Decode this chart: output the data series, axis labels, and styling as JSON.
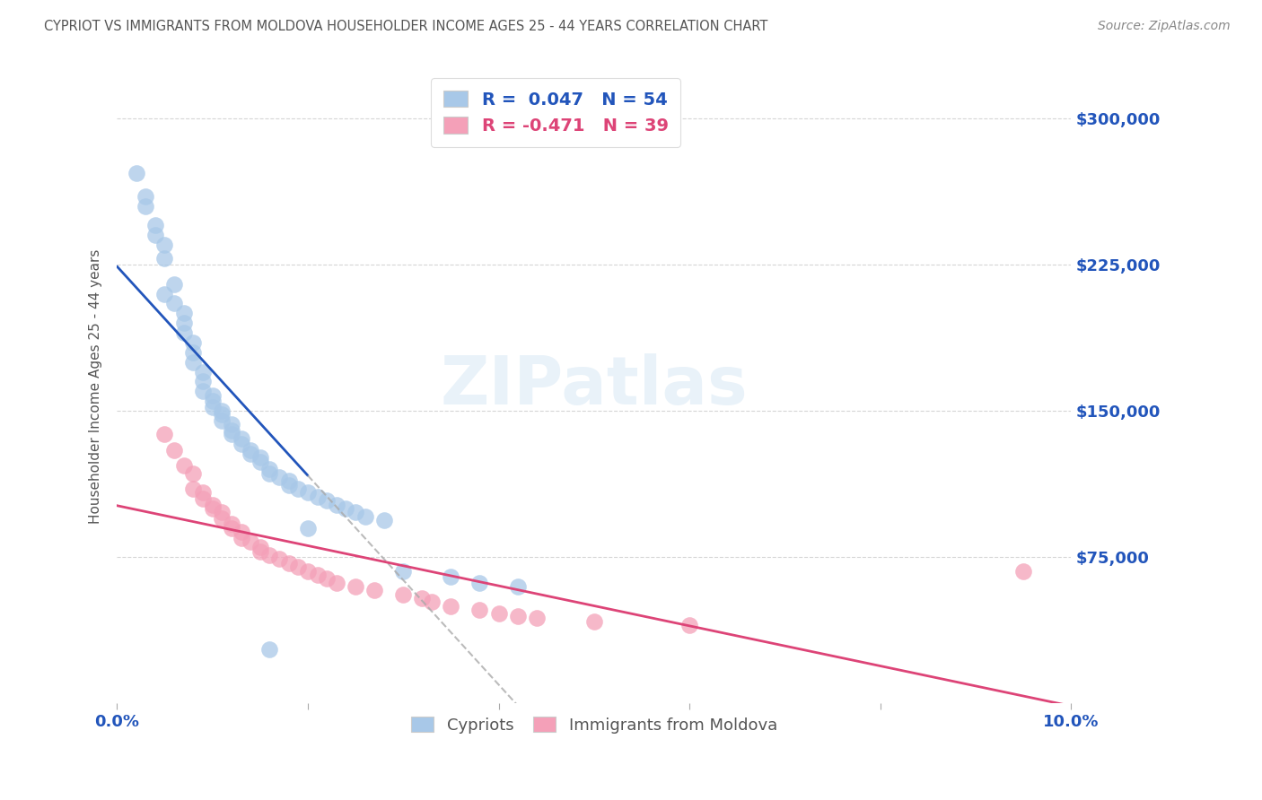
{
  "title": "CYPRIOT VS IMMIGRANTS FROM MOLDOVA HOUSEHOLDER INCOME AGES 25 - 44 YEARS CORRELATION CHART",
  "source": "Source: ZipAtlas.com",
  "ylabel": "Householder Income Ages 25 - 44 years",
  "xlim": [
    0.0,
    0.1
  ],
  "ylim": [
    0,
    325000
  ],
  "yticks": [
    75000,
    150000,
    225000,
    300000
  ],
  "ytick_labels": [
    "$75,000",
    "$150,000",
    "$225,000",
    "$300,000"
  ],
  "xticks": [
    0.0,
    0.02,
    0.04,
    0.06,
    0.08,
    0.1
  ],
  "xtick_labels": [
    "0.0%",
    "",
    "",
    "",
    "",
    "10.0%"
  ],
  "legend_labels": [
    "Cypriots",
    "Immigrants from Moldova"
  ],
  "cypriot_color": "#a8c8e8",
  "moldova_color": "#f4a0b8",
  "cypriot_line_color": "#2255bb",
  "moldova_line_color": "#dd4477",
  "cypriot_R": 0.047,
  "cypriot_N": 54,
  "moldova_R": -0.471,
  "moldova_N": 39,
  "background_color": "#ffffff",
  "grid_color": "#cccccc",
  "title_color": "#555555",
  "axis_label_color": "#555555",
  "tick_label_color": "#2255bb",
  "source_color": "#888888",
  "cypriot_x": [
    0.002,
    0.003,
    0.003,
    0.004,
    0.004,
    0.005,
    0.005,
    0.005,
    0.006,
    0.006,
    0.007,
    0.007,
    0.007,
    0.008,
    0.008,
    0.008,
    0.009,
    0.009,
    0.009,
    0.01,
    0.01,
    0.01,
    0.011,
    0.011,
    0.011,
    0.012,
    0.012,
    0.012,
    0.013,
    0.013,
    0.014,
    0.014,
    0.015,
    0.015,
    0.016,
    0.016,
    0.017,
    0.018,
    0.018,
    0.019,
    0.02,
    0.021,
    0.022,
    0.023,
    0.024,
    0.025,
    0.026,
    0.028,
    0.03,
    0.035,
    0.038,
    0.042,
    0.02,
    0.016
  ],
  "cypriot_y": [
    272000,
    260000,
    255000,
    245000,
    240000,
    235000,
    228000,
    210000,
    215000,
    205000,
    200000,
    195000,
    190000,
    185000,
    180000,
    175000,
    170000,
    165000,
    160000,
    158000,
    155000,
    152000,
    150000,
    148000,
    145000,
    143000,
    140000,
    138000,
    136000,
    133000,
    130000,
    128000,
    126000,
    124000,
    120000,
    118000,
    116000,
    114000,
    112000,
    110000,
    108000,
    106000,
    104000,
    102000,
    100000,
    98000,
    96000,
    94000,
    68000,
    65000,
    62000,
    60000,
    90000,
    28000
  ],
  "moldova_x": [
    0.005,
    0.006,
    0.007,
    0.008,
    0.008,
    0.009,
    0.009,
    0.01,
    0.01,
    0.011,
    0.011,
    0.012,
    0.012,
    0.013,
    0.013,
    0.014,
    0.015,
    0.015,
    0.016,
    0.017,
    0.018,
    0.019,
    0.02,
    0.021,
    0.022,
    0.023,
    0.025,
    0.027,
    0.03,
    0.032,
    0.033,
    0.035,
    0.038,
    0.04,
    0.042,
    0.044,
    0.05,
    0.06,
    0.095
  ],
  "moldova_y": [
    138000,
    130000,
    122000,
    118000,
    110000,
    108000,
    105000,
    102000,
    100000,
    98000,
    95000,
    92000,
    90000,
    88000,
    85000,
    83000,
    80000,
    78000,
    76000,
    74000,
    72000,
    70000,
    68000,
    66000,
    64000,
    62000,
    60000,
    58000,
    56000,
    54000,
    52000,
    50000,
    48000,
    46000,
    45000,
    44000,
    42000,
    40000,
    68000
  ]
}
